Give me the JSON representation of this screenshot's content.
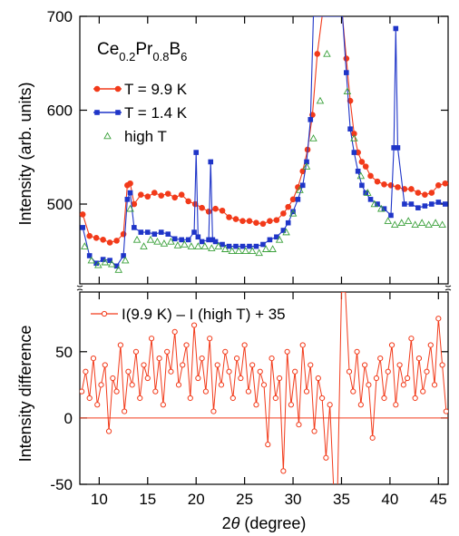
{
  "chart_data": [
    {
      "type": "line",
      "panel": "top",
      "compound": {
        "base": [
          "Ce",
          "Pr",
          "B"
        ],
        "subscripts": [
          "0.2",
          "0.8",
          "6"
        ]
      },
      "xlabel_parts": {
        "symbol": "2",
        "theta": "θ",
        "rest": " (degree)"
      },
      "ylabel": "Intensity  (arb. units)",
      "xlim": [
        8,
        46
      ],
      "ylim": [
        415,
        700
      ],
      "yticks": [
        500,
        600,
        700
      ],
      "xticks": [
        10,
        15,
        20,
        25,
        30,
        35,
        40,
        45
      ],
      "legend_position": "top-left",
      "grid": false,
      "series": [
        {
          "name": "T = 9.9 K",
          "color": "#f23a1a",
          "marker": "circle",
          "x": [
            8.3,
            9.0,
            9.7,
            10.4,
            11.1,
            11.8,
            12.5,
            12.9,
            13.2,
            13.6,
            14.3,
            15.0,
            15.7,
            16.4,
            17.1,
            17.8,
            18.5,
            19.2,
            19.9,
            20.6,
            21.3,
            22.0,
            22.7,
            23.4,
            24.1,
            24.8,
            25.5,
            26.2,
            26.9,
            27.6,
            28.3,
            29.0,
            29.5,
            30.0,
            30.5,
            31.0,
            31.5,
            32.0,
            32.5,
            33.0,
            33.5,
            33.9,
            34.3,
            34.7,
            35.1,
            35.5,
            35.9,
            36.3,
            36.7,
            37.1,
            37.5,
            38.0,
            38.7,
            39.4,
            40.1,
            40.8,
            41.5,
            42.2,
            42.9,
            43.6,
            44.3,
            45.0,
            45.7
          ],
          "values": [
            489,
            466,
            464,
            462,
            459,
            461,
            468,
            520,
            522,
            500,
            510,
            508,
            512,
            509,
            511,
            507,
            510,
            503,
            500,
            496,
            492,
            495,
            493,
            486,
            484,
            482,
            482,
            480,
            479,
            482,
            483,
            490,
            497,
            505,
            518,
            535,
            558,
            595,
            660,
            700,
            700,
            700,
            700,
            700,
            700,
            655,
            610,
            575,
            555,
            545,
            540,
            530,
            524,
            521,
            520,
            518,
            516,
            516,
            512,
            510,
            512,
            520,
            522
          ]
        },
        {
          "name": "T = 1.4 K",
          "color": "#1f35c8",
          "marker": "square",
          "x": [
            8.3,
            9.0,
            9.7,
            10.4,
            11.1,
            11.8,
            12.5,
            12.9,
            13.2,
            13.6,
            14.3,
            15.0,
            15.7,
            16.4,
            17.1,
            17.8,
            18.5,
            19.2,
            19.8,
            20.0,
            20.2,
            20.6,
            21.3,
            21.5,
            21.7,
            22.0,
            22.7,
            23.4,
            24.1,
            24.8,
            25.5,
            26.2,
            26.9,
            27.6,
            28.3,
            29.0,
            29.5,
            30.0,
            30.5,
            31.0,
            31.4,
            31.8,
            32.1,
            32.5,
            33.0,
            33.5,
            33.9,
            34.3,
            34.7,
            35.1,
            35.5,
            35.9,
            36.3,
            36.7,
            37.1,
            37.5,
            38.0,
            38.7,
            39.4,
            40.1,
            40.4,
            40.6,
            40.8,
            41.5,
            42.2,
            42.9,
            43.6,
            44.3,
            45.0,
            45.7
          ],
          "values": [
            475,
            445,
            437,
            441,
            440,
            434,
            445,
            505,
            512,
            475,
            470,
            470,
            468,
            470,
            468,
            463,
            462,
            462,
            470,
            555,
            465,
            460,
            462,
            545,
            462,
            460,
            457,
            455,
            455,
            455,
            455,
            455,
            457,
            462,
            465,
            472,
            480,
            492,
            505,
            520,
            545,
            590,
            700,
            700,
            700,
            700,
            700,
            700,
            700,
            700,
            640,
            580,
            555,
            535,
            520,
            512,
            505,
            500,
            495,
            488,
            560,
            687,
            560,
            500,
            500,
            496,
            498,
            500,
            502,
            500
          ]
        },
        {
          "name": "high T",
          "color": "#3aa03a",
          "marker": "triangle",
          "x": [
            8.5,
            9.2,
            9.9,
            10.6,
            11.3,
            12.0,
            12.7,
            13.2,
            13.9,
            14.6,
            15.3,
            16.0,
            16.7,
            17.4,
            18.1,
            18.8,
            19.5,
            20.2,
            20.9,
            21.6,
            22.3,
            23.0,
            23.7,
            24.4,
            25.1,
            25.8,
            26.5,
            27.2,
            27.9,
            28.6,
            29.3,
            30.0,
            30.7,
            31.4,
            32.1,
            32.8,
            33.5,
            34.2,
            34.9,
            35.6,
            36.3,
            37.0,
            37.7,
            38.4,
            39.1,
            39.8,
            40.5,
            41.2,
            41.9,
            42.6,
            43.3,
            44.0,
            44.7,
            45.4
          ],
          "values": [
            455,
            440,
            435,
            438,
            436,
            430,
            440,
            495,
            462,
            455,
            462,
            460,
            458,
            460,
            456,
            457,
            455,
            455,
            455,
            453,
            455,
            452,
            450,
            450,
            450,
            450,
            448,
            452,
            452,
            462,
            470,
            490,
            515,
            540,
            570,
            610,
            660,
            700,
            700,
            620,
            570,
            530,
            512,
            500,
            495,
            482,
            478,
            480,
            482,
            478,
            480,
            478,
            480,
            478
          ]
        }
      ]
    },
    {
      "type": "line",
      "panel": "bottom",
      "ylabel": "Intensity difference",
      "xlim": [
        8,
        46
      ],
      "ylim": [
        -50,
        95
      ],
      "yticks": [
        -50,
        0,
        50
      ],
      "xticks": [
        10,
        15,
        20,
        25,
        30,
        35,
        40,
        45
      ],
      "legend_position": "top-left",
      "grid": false,
      "reference_line": 0,
      "series": [
        {
          "name": "I(9.9 K) – I (high T) + 35",
          "color": "#f23a1a",
          "marker": "open-circle",
          "x": [
            8.2,
            8.6,
            9.0,
            9.4,
            9.8,
            10.2,
            10.6,
            11.0,
            11.4,
            11.8,
            12.2,
            12.6,
            13.0,
            13.4,
            13.8,
            14.2,
            14.6,
            15.0,
            15.4,
            15.8,
            16.2,
            16.6,
            17.0,
            17.4,
            17.8,
            18.2,
            18.6,
            19.0,
            19.4,
            19.8,
            20.2,
            20.6,
            21.0,
            21.4,
            21.8,
            22.2,
            22.6,
            23.0,
            23.4,
            23.8,
            24.2,
            24.6,
            25.0,
            25.4,
            25.8,
            26.2,
            26.6,
            27.0,
            27.4,
            27.8,
            28.2,
            28.6,
            29.0,
            29.4,
            29.8,
            30.2,
            30.6,
            31.0,
            31.4,
            31.8,
            32.2,
            32.6,
            33.0,
            33.4,
            33.8,
            34.2,
            34.6,
            35.0,
            35.4,
            35.8,
            36.2,
            36.6,
            37.0,
            37.4,
            37.8,
            38.2,
            38.6,
            39.0,
            39.4,
            39.8,
            40.2,
            40.6,
            41.0,
            41.4,
            41.8,
            42.2,
            42.6,
            43.0,
            43.4,
            43.8,
            44.2,
            44.6,
            45.0,
            45.4,
            45.8
          ],
          "values": [
            20,
            35,
            15,
            45,
            10,
            25,
            40,
            -10,
            30,
            20,
            55,
            5,
            35,
            25,
            50,
            15,
            40,
            30,
            60,
            20,
            45,
            10,
            50,
            35,
            65,
            25,
            40,
            55,
            15,
            70,
            30,
            45,
            20,
            60,
            5,
            40,
            25,
            50,
            35,
            15,
            45,
            30,
            55,
            20,
            40,
            10,
            35,
            25,
            -20,
            45,
            15,
            30,
            -40,
            50,
            10,
            35,
            -5,
            55,
            20,
            40,
            -10,
            30,
            15,
            -30,
            10,
            -55,
            -50,
            95,
            95,
            35,
            20,
            50,
            10,
            40,
            25,
            -15,
            30,
            45,
            15,
            35,
            55,
            10,
            40,
            25,
            30,
            60,
            15,
            45,
            20,
            35,
            55,
            25,
            75,
            40,
            5
          ]
        }
      ]
    }
  ]
}
